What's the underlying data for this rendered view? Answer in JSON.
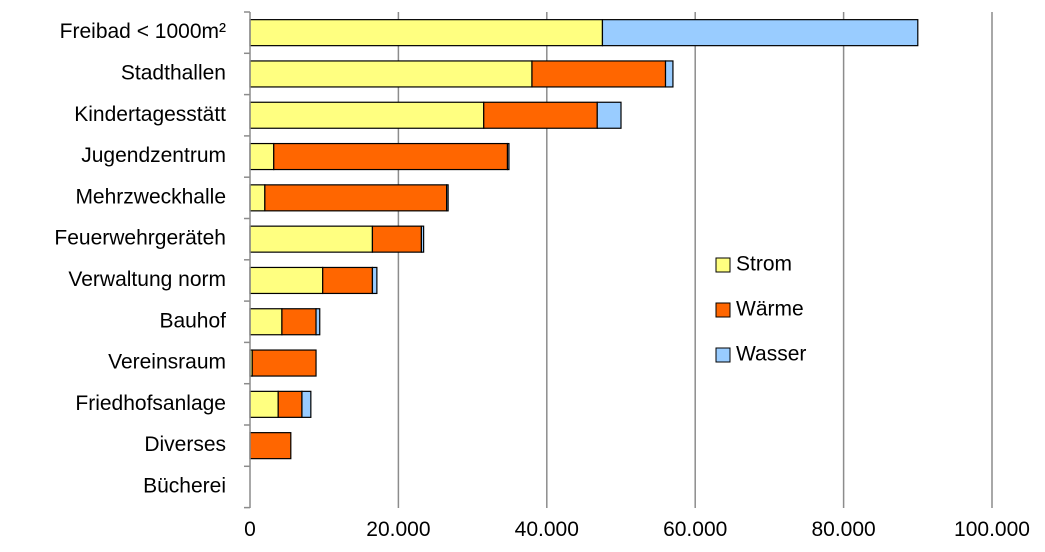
{
  "chart_data": {
    "type": "bar",
    "orientation": "horizontal",
    "stacked": true,
    "title": "",
    "xlabel": "",
    "ylabel": "",
    "xlim": [
      0,
      100000
    ],
    "xticks": [
      0,
      20000,
      40000,
      60000,
      80000,
      100000
    ],
    "xtick_labels": [
      "0",
      "20.000",
      "40.000",
      "60.000",
      "80.000",
      "100.000"
    ],
    "grid": "vertical",
    "legend_position": "right",
    "categories": [
      "Freibad < 1000m²",
      "Stadthallen",
      "Kindertagesstätt",
      "Jugendzentrum",
      "Mehrzweckhalle",
      "Feuerwehrgeräteh",
      "Verwaltung norm",
      "Bauhof",
      "Vereinsraum",
      "Friedhofsanlage",
      "Diverses",
      "Bücherei"
    ],
    "series": [
      {
        "name": "Strom",
        "color": "#ffff80",
        "values": [
          47500,
          38000,
          31500,
          3200,
          2000,
          16500,
          9800,
          4300,
          300,
          3800,
          0,
          0
        ]
      },
      {
        "name": "Wärme",
        "color": "#ff6600",
        "values": [
          0,
          18000,
          15300,
          31500,
          24500,
          6600,
          6700,
          4600,
          8600,
          3200,
          5500,
          0
        ]
      },
      {
        "name": "Wasser",
        "color": "#99ccff",
        "values": [
          42500,
          1000,
          3200,
          200,
          200,
          300,
          600,
          500,
          0,
          1200,
          0,
          0
        ]
      }
    ]
  }
}
